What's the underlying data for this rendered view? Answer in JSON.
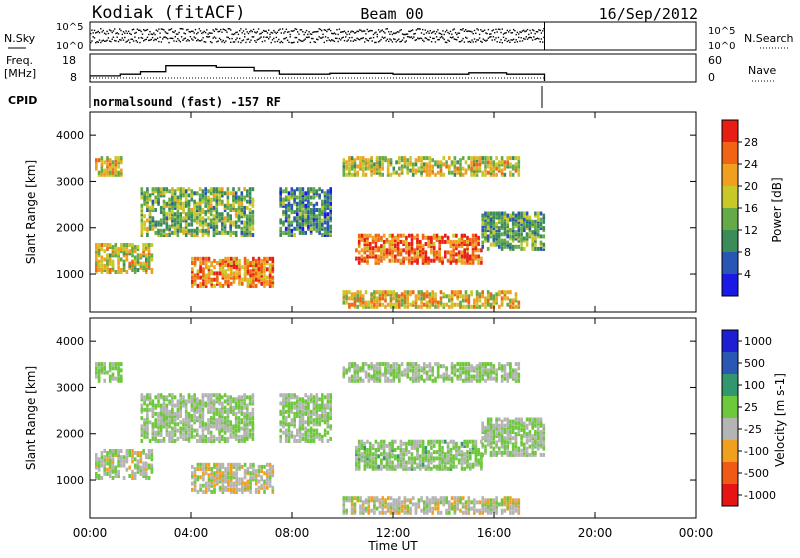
{
  "header": {
    "station": "Kodiak (fitACF)",
    "beam": "Beam 00",
    "date": "16/Sep/2012"
  },
  "noise_panel": {
    "left_label": "N.Sky",
    "right_label": "N.Search",
    "left_ticks": [
      "10^5",
      "10^0"
    ],
    "right_ticks": [
      "10^5",
      "10^0"
    ]
  },
  "freq_panel": {
    "left_label_1": "Freq.",
    "left_label_2": "[MHz]",
    "left_ticks": [
      "18",
      "8"
    ],
    "right_ticks": [
      "60",
      "0"
    ],
    "right_label": "Nave"
  },
  "cpid_panel": {
    "label": "CPID",
    "program": "normalsound (fast) -157 RF"
  },
  "colors": {
    "power_scale": [
      "#1a1ae6",
      "#2856b4",
      "#3c8c5a",
      "#64aa46",
      "#c8c828",
      "#f0a01e",
      "#f06414",
      "#e61e14"
    ],
    "velocity_scale": [
      "#1e1ed2",
      "#2a56b4",
      "#32966e",
      "#6ec83c",
      "#b4b4b4",
      "#f0a01e",
      "#f05a14",
      "#e61414"
    ]
  },
  "chart_data": [
    {
      "type": "heatmap",
      "name": "power",
      "xlabel": "Time UT",
      "ylabel": "Slant Range [km]",
      "xlim": [
        0,
        24
      ],
      "ylim": [
        180,
        4500
      ],
      "x_ticks": [
        "00:00",
        "04:00",
        "08:00",
        "12:00",
        "16:00",
        "20:00",
        "00:00"
      ],
      "y_ticks": [
        "1000",
        "2000",
        "3000",
        "4000"
      ],
      "colorbar": {
        "label": "Power [dB]",
        "range": [
          0,
          32
        ],
        "ticks": [
          "28",
          "24",
          "20",
          "16",
          "12",
          "8",
          "4"
        ]
      },
      "data_end_time": 18.0,
      "echo_regions": [
        {
          "t_start": 0.2,
          "t_end": 1.2,
          "r_min": 3100,
          "r_max": 3500,
          "level": 20
        },
        {
          "t_start": 2.0,
          "t_end": 6.5,
          "r_min": 1800,
          "r_max": 2800,
          "level": 14
        },
        {
          "t_start": 4.0,
          "t_end": 7.2,
          "r_min": 700,
          "r_max": 1300,
          "level": 24
        },
        {
          "t_start": 0.2,
          "t_end": 2.5,
          "r_min": 1000,
          "r_max": 1600,
          "level": 18
        },
        {
          "t_start": 7.5,
          "t_end": 9.5,
          "r_min": 1800,
          "r_max": 2800,
          "level": 10
        },
        {
          "t_start": 10.5,
          "t_end": 15.5,
          "r_min": 1200,
          "r_max": 1800,
          "level": 26
        },
        {
          "t_start": 10.0,
          "t_end": 17.0,
          "r_min": 3100,
          "r_max": 3500,
          "level": 18
        },
        {
          "t_start": 15.5,
          "t_end": 18.0,
          "r_min": 1500,
          "r_max": 2300,
          "level": 12
        },
        {
          "t_start": 10.0,
          "t_end": 17.0,
          "r_min": 250,
          "r_max": 600,
          "level": 20
        }
      ]
    },
    {
      "type": "heatmap",
      "name": "velocity",
      "xlabel": "Time UT",
      "ylabel": "Slant Range [km]",
      "xlim": [
        0,
        24
      ],
      "ylim": [
        180,
        4500
      ],
      "x_ticks": [
        "00:00",
        "04:00",
        "08:00",
        "12:00",
        "16:00",
        "20:00",
        "00:00"
      ],
      "y_ticks": [
        "1000",
        "2000",
        "3000",
        "4000"
      ],
      "colorbar": {
        "label": "Velocity [m s-1]",
        "range": [
          -1200,
          1200
        ],
        "ticks": [
          "1000",
          "500",
          "100",
          "25",
          "-25",
          "-100",
          "-500",
          "-1000"
        ]
      },
      "data_end_time": 18.0,
      "echo_regions": [
        {
          "t_start": 0.2,
          "t_end": 1.2,
          "r_min": 3100,
          "r_max": 3500,
          "level": 0
        },
        {
          "t_start": 2.0,
          "t_end": 6.5,
          "r_min": 1800,
          "r_max": 2800,
          "level": 0
        },
        {
          "t_start": 4.0,
          "t_end": 7.2,
          "r_min": 700,
          "r_max": 1300,
          "level": -300
        },
        {
          "t_start": 0.2,
          "t_end": 2.5,
          "r_min": 1000,
          "r_max": 1600,
          "level": -100
        },
        {
          "t_start": 7.5,
          "t_end": 9.5,
          "r_min": 1800,
          "r_max": 2800,
          "level": 0
        },
        {
          "t_start": 10.5,
          "t_end": 15.5,
          "r_min": 1200,
          "r_max": 1800,
          "level": 100
        },
        {
          "t_start": 10.0,
          "t_end": 17.0,
          "r_min": 3100,
          "r_max": 3500,
          "level": 0
        },
        {
          "t_start": 15.5,
          "t_end": 18.0,
          "r_min": 1500,
          "r_max": 2300,
          "level": 0
        },
        {
          "t_start": 10.0,
          "t_end": 17.0,
          "r_min": 250,
          "r_max": 600,
          "level": -200
        }
      ]
    }
  ]
}
